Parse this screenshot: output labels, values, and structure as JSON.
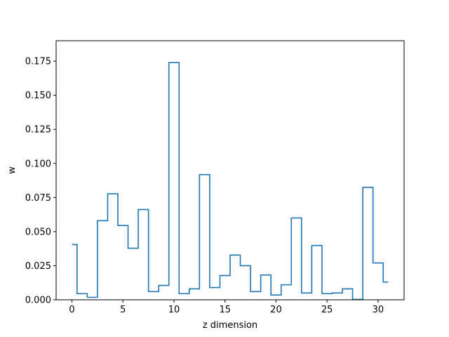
{
  "chart_data": {
    "type": "line",
    "drawstyle": "steps-mid",
    "xlabel": "z dimension",
    "ylabel": "w",
    "x": [
      0,
      1,
      2,
      3,
      4,
      5,
      6,
      7,
      8,
      9,
      10,
      11,
      12,
      13,
      14,
      15,
      16,
      17,
      18,
      19,
      20,
      21,
      22,
      23,
      24,
      25,
      26,
      27,
      28,
      29,
      30,
      31
    ],
    "series": [
      {
        "color": "#1f77b4",
        "values": [
          0.0405,
          0.0045,
          0.0018,
          0.058,
          0.0778,
          0.0545,
          0.0378,
          0.0662,
          0.006,
          0.0105,
          0.174,
          0.0045,
          0.008,
          0.0918,
          0.009,
          0.0178,
          0.0328,
          0.025,
          0.006,
          0.0182,
          0.0035,
          0.011,
          0.06,
          0.005,
          0.0398,
          0.0045,
          0.005,
          0.008,
          0.0003,
          0.0825,
          0.027,
          0.013
        ]
      }
    ],
    "xlim": [
      -1.55,
      32.55
    ],
    "ylim": [
      0,
      0.19
    ],
    "xticks": [
      0,
      5,
      10,
      15,
      20,
      25,
      30
    ],
    "xtick_labels": [
      "0",
      "5",
      "10",
      "15",
      "20",
      "25",
      "30"
    ],
    "yticks": [
      0,
      0.025,
      0.05,
      0.075,
      0.1,
      0.125,
      0.15,
      0.175
    ],
    "ytick_labels": [
      "0.000",
      "0.025",
      "0.050",
      "0.075",
      "0.100",
      "0.125",
      "0.150",
      "0.175"
    ],
    "grid": false,
    "legend": "none"
  }
}
